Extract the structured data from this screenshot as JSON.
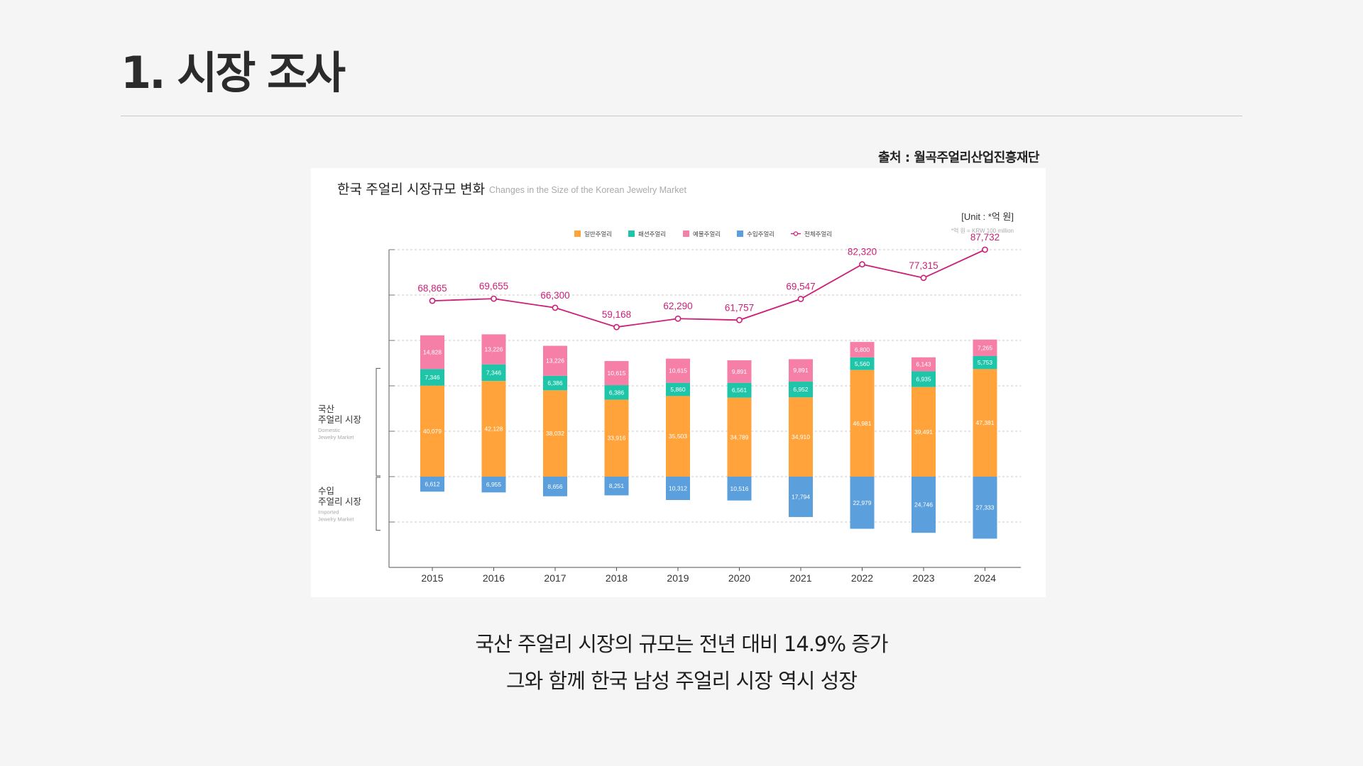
{
  "page": {
    "title": "1. 시장 조사",
    "source": "출처 : 월곡주얼리산업진흥재단",
    "caption_line1": "국산 주얼리 시장의 규모는 전년 대비 14.9% 증가",
    "caption_line2": "그와 함께 한국 남성 주얼리 시장 역시 성장"
  },
  "chart_data": {
    "type": "bar",
    "stacked": true,
    "title": "한국 주얼리 시장규모 변화",
    "subtitle": "Changes in the Size of the Korean Jewelry Market",
    "unit": "[Unit : *억 원]",
    "unit_note": "*억 원 = KRW 100 million",
    "categories": [
      "2015",
      "2016",
      "2017",
      "2018",
      "2019",
      "2020",
      "2021",
      "2022",
      "2023",
      "2024"
    ],
    "series": [
      {
        "name": "일반주얼리",
        "color": "#ffa33a",
        "values": [
          40079,
          42128,
          38032,
          33916,
          35503,
          34789,
          34910,
          46981,
          39491,
          47381
        ]
      },
      {
        "name": "패션주얼리",
        "color": "#1fc5a8",
        "values": [
          7346,
          7346,
          6386,
          6386,
          5860,
          6561,
          6952,
          5560,
          6935,
          5753
        ]
      },
      {
        "name": "예물주얼리",
        "color": "#f67fa8",
        "values": [
          14828,
          13226,
          13226,
          10615,
          10615,
          9891,
          9891,
          6800,
          6143,
          7265
        ]
      },
      {
        "name": "수입주얼리",
        "color": "#5b9fdc",
        "values": [
          6612,
          6955,
          8656,
          8251,
          10312,
          10516,
          17794,
          22979,
          24746,
          27333
        ]
      }
    ],
    "total": {
      "name": "전체주얼리",
      "color": "#cc1f79",
      "values": [
        68865,
        69655,
        66300,
        59168,
        62290,
        61757,
        69547,
        82320,
        77315,
        87732
      ]
    },
    "ylim": [
      -40000,
      100000
    ],
    "grid": true,
    "legend_position": "top",
    "groups": [
      {
        "label_line1": "국산",
        "label_line2": "주얼리 시장",
        "en_line1": "Domestic",
        "en_line2": "Jewelry Market"
      },
      {
        "label_line1": "수입",
        "label_line2": "주얼리 시장",
        "en_line1": "Imported",
        "en_line2": "Jewelry Market"
      }
    ]
  }
}
